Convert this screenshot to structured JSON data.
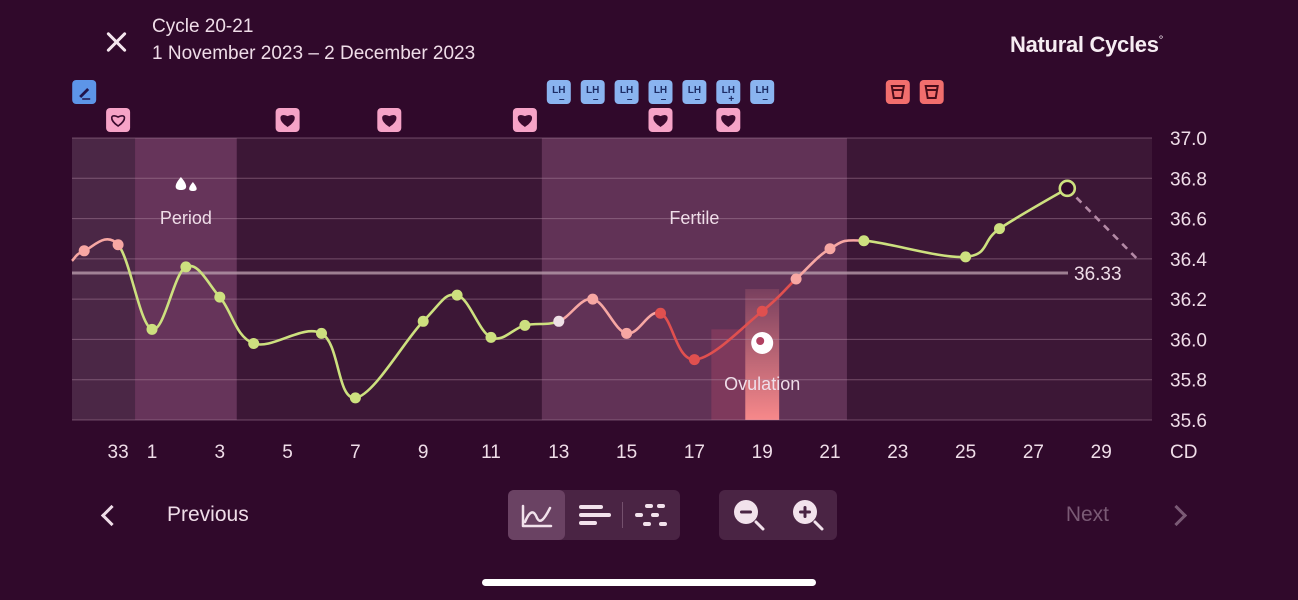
{
  "header": {
    "title": "Cycle 20-21",
    "subtitle": "1 November 2023 – 2 December 2023",
    "brand": "Natural Cycles",
    "brand_mark": "°"
  },
  "colors": {
    "background": "#30092b",
    "period_band": "#6d3a60",
    "fertile_band": "#6a3a5f",
    "green_line": "#cde07f",
    "pink_line": "#f7a7a3",
    "red_line": "#e0504f",
    "coverline": "#b69aaa",
    "lh_icon": "#8ab4f0",
    "heart_icon": "#f6a3c7",
    "note_icon": "#5d95e8",
    "test_icon": "#f26e6d"
  },
  "chart_data": {
    "type": "line",
    "x_axis_label": "CD",
    "x_ticks": [
      "33",
      "1",
      "3",
      "5",
      "7",
      "9",
      "11",
      "13",
      "15",
      "17",
      "19",
      "21",
      "23",
      "25",
      "27",
      "29"
    ],
    "y_ticks": [
      "37.0",
      "36.8",
      "36.6",
      "36.4",
      "36.2",
      "36.0",
      "35.8",
      "35.6"
    ],
    "ylim": [
      35.6,
      37.0
    ],
    "coverline": {
      "value": 36.33,
      "label": "36.33"
    },
    "bands": [
      {
        "label": "Period",
        "from_day": 1,
        "to_day": 3
      },
      {
        "label": "Fertile",
        "from_day": 13,
        "to_day": 21
      },
      {
        "label": "Ovulation",
        "day": 19
      }
    ],
    "points": [
      {
        "day": 32,
        "temp": 36.44,
        "color": "pink"
      },
      {
        "day": 33,
        "temp": 36.47,
        "color": "pink"
      },
      {
        "day": 1,
        "temp": 36.05,
        "color": "green"
      },
      {
        "day": 2,
        "temp": 36.36,
        "color": "green"
      },
      {
        "day": 3,
        "temp": 36.21,
        "color": "green"
      },
      {
        "day": 4,
        "temp": 35.98,
        "color": "green"
      },
      {
        "day": 6,
        "temp": 36.03,
        "color": "green"
      },
      {
        "day": 7,
        "temp": 35.71,
        "color": "green"
      },
      {
        "day": 9,
        "temp": 36.09,
        "color": "green"
      },
      {
        "day": 10,
        "temp": 36.22,
        "color": "green"
      },
      {
        "day": 11,
        "temp": 36.01,
        "color": "green"
      },
      {
        "day": 12,
        "temp": 36.07,
        "color": "green"
      },
      {
        "day": 13,
        "temp": 36.09,
        "color": "white"
      },
      {
        "day": 14,
        "temp": 36.2,
        "color": "pink"
      },
      {
        "day": 15,
        "temp": 36.03,
        "color": "pink"
      },
      {
        "day": 16,
        "temp": 36.13,
        "color": "red"
      },
      {
        "day": 17,
        "temp": 35.9,
        "color": "red"
      },
      {
        "day": 19,
        "temp": 36.14,
        "color": "red"
      },
      {
        "day": 20,
        "temp": 36.3,
        "color": "pink"
      },
      {
        "day": 21,
        "temp": 36.45,
        "color": "pink"
      },
      {
        "day": 22,
        "temp": 36.49,
        "color": "green"
      },
      {
        "day": 25,
        "temp": 36.41,
        "color": "green"
      },
      {
        "day": 26,
        "temp": 36.55,
        "color": "green"
      },
      {
        "day": 28,
        "temp": 36.75,
        "color": "green",
        "open": true
      }
    ],
    "prediction_to": {
      "day": 30,
      "temp": 36.4
    },
    "markers": {
      "note": [
        33
      ],
      "lh_negative": [
        13,
        14,
        15,
        16,
        17,
        19
      ],
      "lh_positive": [
        18
      ],
      "heart_outline": [
        33
      ],
      "heart_filled": [
        5,
        8,
        12,
        16,
        18
      ],
      "test": [
        23,
        24
      ]
    },
    "marker_text": {
      "lh": "LH",
      "lh_neg_sign": "–",
      "lh_pos_sign": "+"
    }
  },
  "footer": {
    "previous_label": "Previous",
    "next_label": "Next"
  },
  "icons": {
    "close": "close-icon",
    "prev": "chevron-left-icon",
    "next": "chevron-right-icon",
    "view_graph": "line-graph-icon",
    "view_bars": "bars-icon",
    "view_scatter": "scatter-icon",
    "zoom_out": "zoom-out-icon",
    "zoom_in": "zoom-in-icon"
  }
}
